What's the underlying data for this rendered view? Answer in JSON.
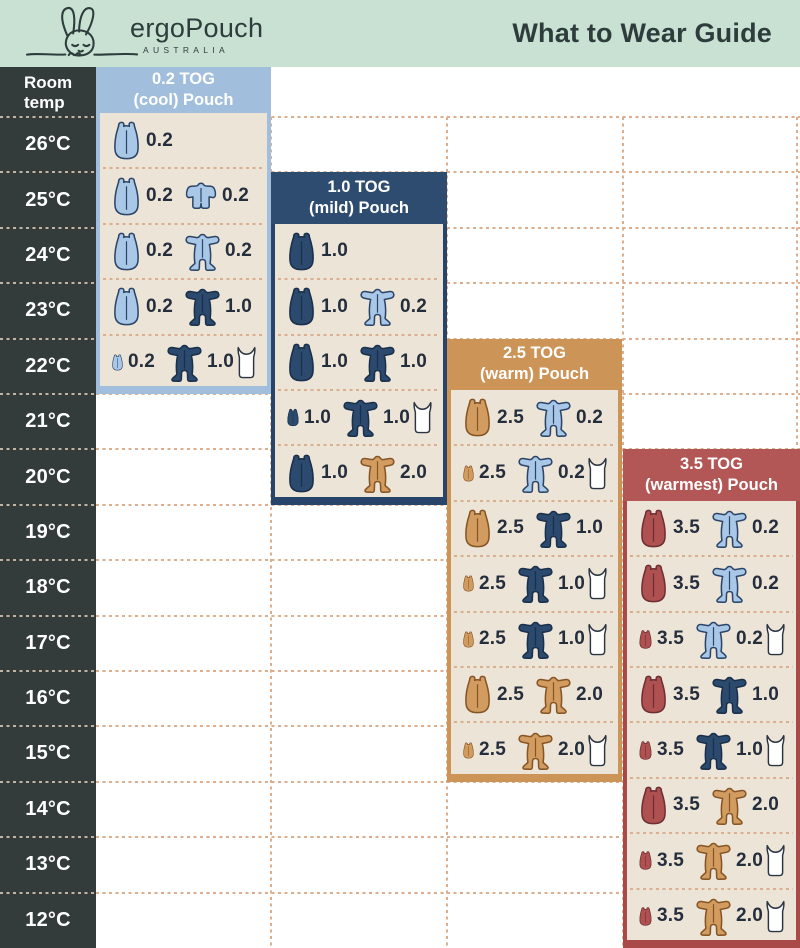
{
  "header": {
    "brand": "ergoPouch",
    "brand_sub": "AUSTRALIA",
    "title": "What to Wear Guide"
  },
  "temp_column": {
    "header_line1": "Room",
    "header_line2": "temp"
  },
  "colors": {
    "topbar_bg": "#c8e1d2",
    "title_text": "#2e3d3c",
    "temp_col_bg": "#333c3b",
    "temp_text": "#ffffff",
    "panel_body_bg": "#ede4d8",
    "grid_dash": "#ddae8e",
    "grid_dash_on_dark": "#c2b3a3",
    "row_dash": "#dcae90",
    "value_text": "#242e3c",
    "themes": {
      "lightblue": {
        "header": "#a2bedd",
        "border": "#a2bedd",
        "fill": "#a9c7e6",
        "stroke": "#2b4568"
      },
      "navy": {
        "header": "#2e4c70",
        "border": "#27456a",
        "fill": "#2b4a6e",
        "stroke": "#1a2f4a"
      },
      "tan": {
        "header": "#cd9458",
        "border": "#cd9458",
        "fill": "#d29c60",
        "stroke": "#865524"
      },
      "red": {
        "header": "#b25756",
        "border": "#a94a49",
        "fill": "#ae5150",
        "stroke": "#6e2f33"
      },
      "singlet": {
        "fill": "#ffffff",
        "stroke": "#2b3440"
      }
    }
  },
  "chart_data": {
    "type": "table",
    "title": "What to Wear Guide",
    "row_axis_label": "Room temp",
    "temps": [
      "26°C",
      "25°C",
      "24°C",
      "23°C",
      "22°C",
      "21°C",
      "20°C",
      "19°C",
      "18°C",
      "17°C",
      "16°C",
      "15°C",
      "14°C",
      "13°C",
      "12°C"
    ],
    "panels": [
      {
        "name": "0.2-tog-cool-pouch",
        "title_line1": "0.2 TOG",
        "title_line2": "(cool) Pouch",
        "theme": "lightblue",
        "rows": [
          {
            "temp": "26°C",
            "pouch_tog": "0.2"
          },
          {
            "temp": "25°C",
            "pouch_tog": "0.2",
            "garment": "romper",
            "garment_theme": "lightblue",
            "garment_tog": "0.2"
          },
          {
            "temp": "24°C",
            "pouch_tog": "0.2",
            "garment": "sleepsuit",
            "garment_theme": "lightblue",
            "garment_tog": "0.2"
          },
          {
            "temp": "23°C",
            "pouch_tog": "0.2",
            "garment": "sleepsuit",
            "garment_theme": "navy",
            "garment_tog": "1.0"
          },
          {
            "temp": "22°C",
            "pouch_tog": "0.2",
            "garment": "sleepsuit",
            "garment_theme": "navy",
            "garment_tog": "1.0",
            "singlet": true
          }
        ]
      },
      {
        "name": "1.0-tog-mild-pouch",
        "title_line1": "1.0 TOG",
        "title_line2": "(mild) Pouch",
        "theme": "navy",
        "rows": [
          {
            "temp": "24°C",
            "pouch_tog": "1.0"
          },
          {
            "temp": "23°C",
            "pouch_tog": "1.0",
            "garment": "sleepsuit",
            "garment_theme": "lightblue",
            "garment_tog": "0.2"
          },
          {
            "temp": "22°C",
            "pouch_tog": "1.0",
            "garment": "sleepsuit",
            "garment_theme": "navy",
            "garment_tog": "1.0"
          },
          {
            "temp": "21°C",
            "pouch_tog": "1.0",
            "garment": "sleepsuit",
            "garment_theme": "navy",
            "garment_tog": "1.0",
            "singlet": true
          },
          {
            "temp": "20°C",
            "pouch_tog": "1.0",
            "garment": "sleepsuit",
            "garment_theme": "tan",
            "garment_tog": "2.0"
          }
        ]
      },
      {
        "name": "2.5-tog-warm-pouch",
        "title_line1": "2.5 TOG",
        "title_line2": "(warm) Pouch",
        "theme": "tan",
        "rows": [
          {
            "temp": "21°C",
            "pouch_tog": "2.5",
            "garment": "sleepsuit",
            "garment_theme": "lightblue",
            "garment_tog": "0.2"
          },
          {
            "temp": "20°C",
            "pouch_tog": "2.5",
            "garment": "sleepsuit",
            "garment_theme": "lightblue",
            "garment_tog": "0.2",
            "singlet": true
          },
          {
            "temp": "19°C",
            "pouch_tog": "2.5",
            "garment": "sleepsuit",
            "garment_theme": "navy",
            "garment_tog": "1.0"
          },
          {
            "temp": "18°C",
            "pouch_tog": "2.5",
            "garment": "sleepsuit",
            "garment_theme": "navy",
            "garment_tog": "1.0",
            "singlet": true
          },
          {
            "temp": "17°C",
            "pouch_tog": "2.5",
            "garment": "sleepsuit",
            "garment_theme": "navy",
            "garment_tog": "1.0",
            "singlet": true
          },
          {
            "temp": "16°C",
            "pouch_tog": "2.5",
            "garment": "sleepsuit",
            "garment_theme": "tan",
            "garment_tog": "2.0"
          },
          {
            "temp": "15°C",
            "pouch_tog": "2.5",
            "garment": "sleepsuit",
            "garment_theme": "tan",
            "garment_tog": "2.0",
            "singlet": true
          }
        ]
      },
      {
        "name": "3.5-tog-warmest-pouch",
        "title_line1": "3.5 TOG",
        "title_line2": "(warmest) Pouch",
        "theme": "red",
        "rows": [
          {
            "temp": "19°C",
            "pouch_tog": "3.5",
            "garment": "sleepsuit",
            "garment_theme": "lightblue",
            "garment_tog": "0.2"
          },
          {
            "temp": "18°C",
            "pouch_tog": "3.5",
            "garment": "sleepsuit",
            "garment_theme": "lightblue",
            "garment_tog": "0.2"
          },
          {
            "temp": "17°C",
            "pouch_tog": "3.5",
            "garment": "sleepsuit",
            "garment_theme": "lightblue",
            "garment_tog": "0.2",
            "singlet": true
          },
          {
            "temp": "16°C",
            "pouch_tog": "3.5",
            "garment": "sleepsuit",
            "garment_theme": "navy",
            "garment_tog": "1.0"
          },
          {
            "temp": "15°C",
            "pouch_tog": "3.5",
            "garment": "sleepsuit",
            "garment_theme": "navy",
            "garment_tog": "1.0",
            "singlet": true
          },
          {
            "temp": "14°C",
            "pouch_tog": "3.5",
            "garment": "sleepsuit",
            "garment_theme": "tan",
            "garment_tog": "2.0"
          },
          {
            "temp": "13°C",
            "pouch_tog": "3.5",
            "garment": "sleepsuit",
            "garment_theme": "tan",
            "garment_tog": "2.0",
            "singlet": true
          },
          {
            "temp": "12°C",
            "pouch_tog": "3.5",
            "garment": "sleepsuit",
            "garment_theme": "tan",
            "garment_tog": "2.0",
            "singlet": true
          }
        ]
      }
    ]
  }
}
